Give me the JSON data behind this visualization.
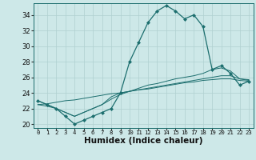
{
  "x": [
    0,
    1,
    2,
    3,
    4,
    5,
    6,
    7,
    8,
    9,
    10,
    11,
    12,
    13,
    14,
    15,
    16,
    17,
    18,
    19,
    20,
    21,
    22,
    23
  ],
  "humidex_main": [
    23,
    22.5,
    22,
    21,
    20,
    20.5,
    21,
    21.5,
    22,
    24,
    28,
    30.5,
    33,
    34.5,
    35.2,
    34.5,
    33.5,
    34,
    32.5,
    27,
    27.5,
    26.5,
    25,
    25.5
  ],
  "line2": [
    23,
    22.5,
    22,
    21.5,
    21,
    21.5,
    22,
    22.5,
    23.5,
    24,
    24.2,
    24.4,
    24.6,
    24.8,
    25,
    25.2,
    25.4,
    25.6,
    25.8,
    26,
    26.2,
    26.2,
    25.8,
    25.7
  ],
  "line3": [
    22.5,
    22.3,
    22,
    21.5,
    21,
    21.5,
    22,
    22.5,
    23.2,
    23.8,
    24.2,
    24.6,
    25,
    25.2,
    25.5,
    25.8,
    26,
    26.2,
    26.5,
    27,
    27.2,
    26.8,
    25.8,
    25.6
  ],
  "line4": [
    22.5,
    22.6,
    22.8,
    23.0,
    23.1,
    23.3,
    23.5,
    23.7,
    23.9,
    24.0,
    24.2,
    24.4,
    24.5,
    24.7,
    24.9,
    25.1,
    25.3,
    25.4,
    25.6,
    25.7,
    25.8,
    25.8,
    25.6,
    25.5
  ],
  "color_main": "#1c6e6e",
  "bg_color": "#cde8e8",
  "grid_color": "#afd0d0",
  "ylim": [
    19.5,
    35.5
  ],
  "xlim": [
    -0.5,
    23.5
  ],
  "yticks": [
    20,
    22,
    24,
    26,
    28,
    30,
    32,
    34
  ],
  "xticks": [
    0,
    1,
    2,
    3,
    4,
    5,
    6,
    7,
    8,
    9,
    10,
    11,
    12,
    13,
    14,
    15,
    16,
    17,
    18,
    19,
    20,
    21,
    22,
    23
  ],
  "xlabel": "Humidex (Indice chaleur)",
  "xlabel_fontsize": 7.5,
  "xlabel_bold": true
}
